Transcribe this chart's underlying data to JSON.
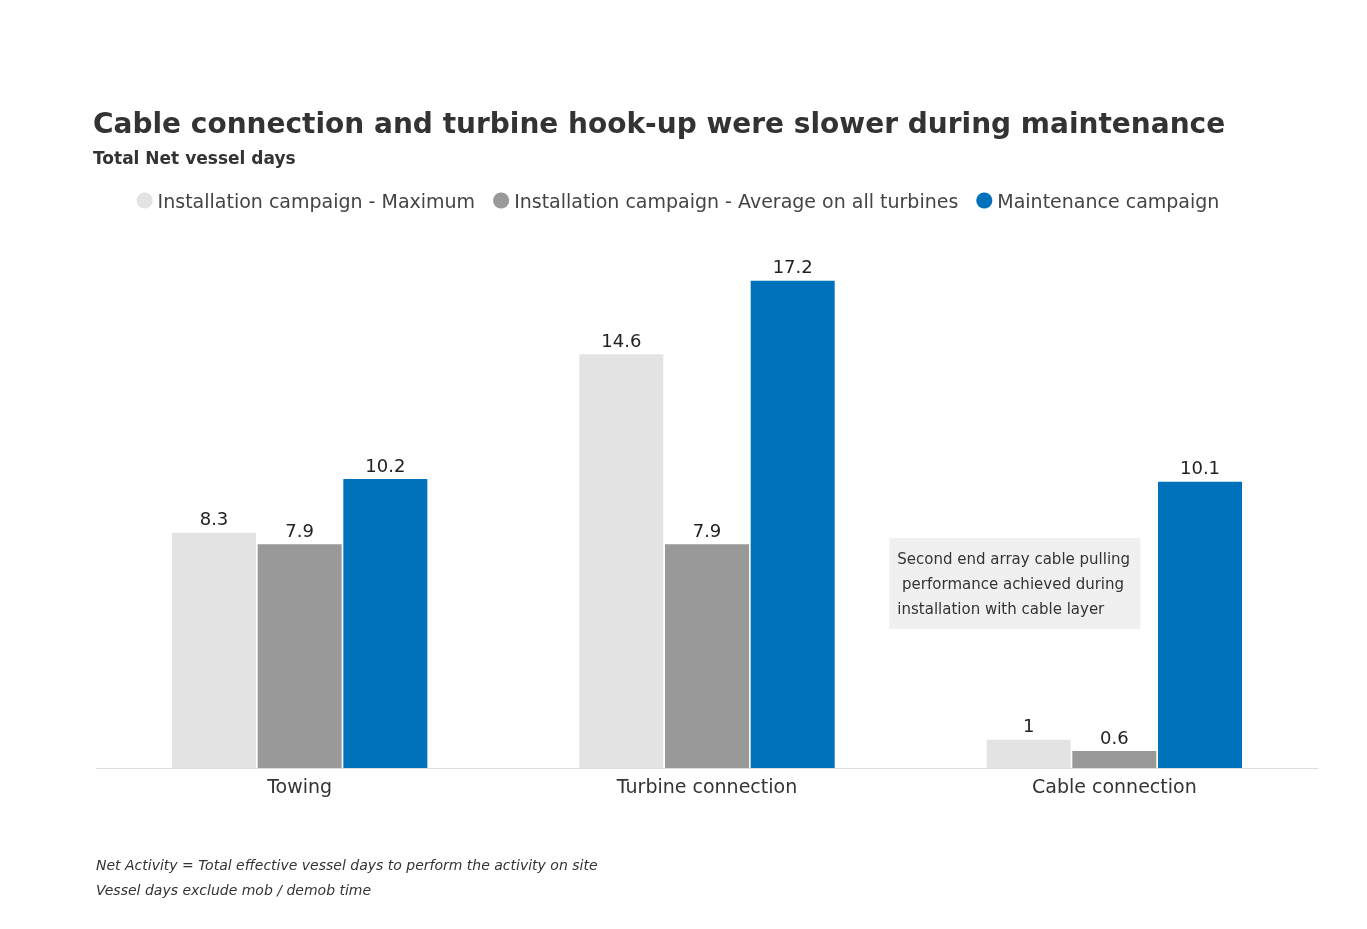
{
  "chart_data": {
    "type": "bar",
    "title": "Cable connection and turbine hook-up were slower during maintenance",
    "subtitle": "Total Net vessel days",
    "categories": [
      "Towing",
      "Turbine connection",
      "Cable connection"
    ],
    "series": [
      {
        "name": "Installation campaign - Maximum",
        "color": "#e3e3e3",
        "values": [
          8.3,
          14.6,
          1
        ]
      },
      {
        "name": "Installation campaign - Average on all turbines",
        "color": "#999999",
        "values": [
          7.9,
          7.9,
          0.6
        ]
      },
      {
        "name": "Maintenance campaign",
        "color": "#0072bc",
        "values": [
          10.2,
          17.2,
          10.1
        ]
      }
    ],
    "data_labels": true,
    "legend": "top",
    "annotations": [
      "Second end array cable pulling performance achieved during installation with cable layer",
      "Net Activity = Total effective vessel days to perform the activity on site",
      "Vessel days exclude mob / demob time"
    ]
  }
}
